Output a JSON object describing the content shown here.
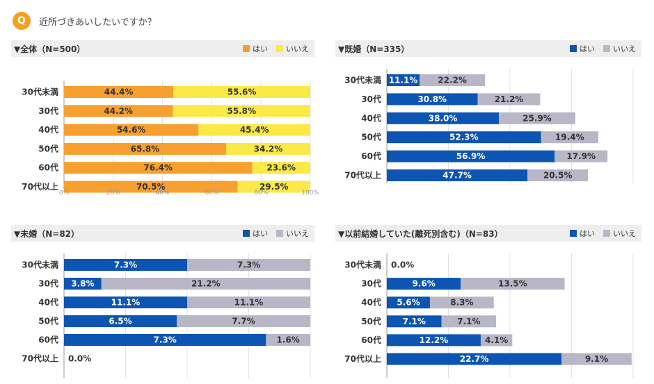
{
  "question": {
    "badge": "Q",
    "text": "近所づきあいしたいですか？"
  },
  "legend": {
    "yes": "はい",
    "no": "いいえ"
  },
  "colors": {
    "yes_orange": "#f7a02f",
    "no_yellow": "#fbe947",
    "yes_blue": "#0d55b3",
    "no_gray": "#b7b7c8",
    "accent": "#f5a020"
  },
  "chart_data": [
    {
      "id": "all",
      "type": "bar",
      "orientation": "horizontal",
      "stacked": true,
      "title": "▼全体（N=500）",
      "categories": [
        "30代未満",
        "30代",
        "40代",
        "50代",
        "60代",
        "70代以上"
      ],
      "series": [
        {
          "name": "はい",
          "values": [
            44.4,
            44.2,
            54.6,
            65.8,
            76.4,
            70.5
          ]
        },
        {
          "name": "いいえ",
          "values": [
            55.6,
            55.8,
            45.4,
            34.2,
            23.6,
            29.5
          ]
        }
      ],
      "value_labels": {
        "はい": [
          "44.4%",
          "44.2%",
          "54.6%",
          "65.8%",
          "76.4%",
          "70.5%"
        ],
        "いいえ": [
          "55.6%",
          "55.8%",
          "45.4%",
          "34.2%",
          "23.6%",
          "29.5%"
        ]
      },
      "xlim": [
        0,
        100
      ],
      "xticks": [
        "0%",
        "20%",
        "40%",
        "60%",
        "80%",
        "100%"
      ],
      "grid": true,
      "legend_position": "top-right"
    },
    {
      "id": "married",
      "type": "bar",
      "orientation": "horizontal",
      "stacked": true,
      "title": "▼既婚（N=335）",
      "categories": [
        "30代未満",
        "30代",
        "40代",
        "50代",
        "60代",
        "70代以上"
      ],
      "series": [
        {
          "name": "はい",
          "values": [
            11.1,
            30.8,
            38.0,
            52.3,
            56.9,
            47.7
          ]
        },
        {
          "name": "いいえ",
          "values": [
            22.2,
            21.2,
            25.9,
            19.4,
            17.9,
            20.5
          ]
        }
      ],
      "value_labels": {
        "はい": [
          "11.1%",
          "30.8%",
          "38.0%",
          "52.3%",
          "56.9%",
          "47.7%"
        ],
        "いいえ": [
          "22.2%",
          "21.2%",
          "25.9%",
          "19.4%",
          "17.9%",
          "20.5%"
        ]
      },
      "grid": true,
      "legend_position": "top-right"
    },
    {
      "id": "unmarried",
      "type": "bar",
      "orientation": "horizontal",
      "stacked": true,
      "title": "▼未婚（N=82）",
      "categories": [
        "30代未満",
        "30代",
        "40代",
        "50代",
        "60代",
        "70代以上"
      ],
      "series": [
        {
          "name": "はい",
          "values": [
            7.3,
            3.8,
            11.1,
            6.5,
            7.3,
            0.0
          ]
        },
        {
          "name": "いいえ",
          "values": [
            7.3,
            21.2,
            11.1,
            7.7,
            1.6,
            0.0
          ]
        }
      ],
      "value_labels": {
        "はい": [
          "7.3%",
          "3.8%",
          "11.1%",
          "6.5%",
          "7.3%",
          "0.0%"
        ],
        "いいえ": [
          "7.3%",
          "21.2%",
          "11.1%",
          "7.7%",
          "1.6%",
          ""
        ]
      },
      "grid": true,
      "legend_position": "top-right"
    },
    {
      "id": "previously_married",
      "type": "bar",
      "orientation": "horizontal",
      "stacked": true,
      "title": "▼以前結婚していた(離死別含む)（N=83）",
      "categories": [
        "30代未満",
        "30代",
        "40代",
        "50代",
        "60代",
        "70代以上"
      ],
      "series": [
        {
          "name": "はい",
          "values": [
            0.0,
            9.6,
            5.6,
            7.1,
            12.2,
            22.7
          ]
        },
        {
          "name": "いいえ",
          "values": [
            0.0,
            13.5,
            8.3,
            7.1,
            4.1,
            9.1
          ]
        }
      ],
      "value_labels": {
        "はい": [
          "0.0%",
          "9.6%",
          "5.6%",
          "7.1%",
          "12.2%",
          "22.7%"
        ],
        "いいえ": [
          "",
          "13.5%",
          "8.3%",
          "7.1%",
          "4.1%",
          "9.1%"
        ]
      },
      "grid": true,
      "legend_position": "top-right"
    }
  ]
}
